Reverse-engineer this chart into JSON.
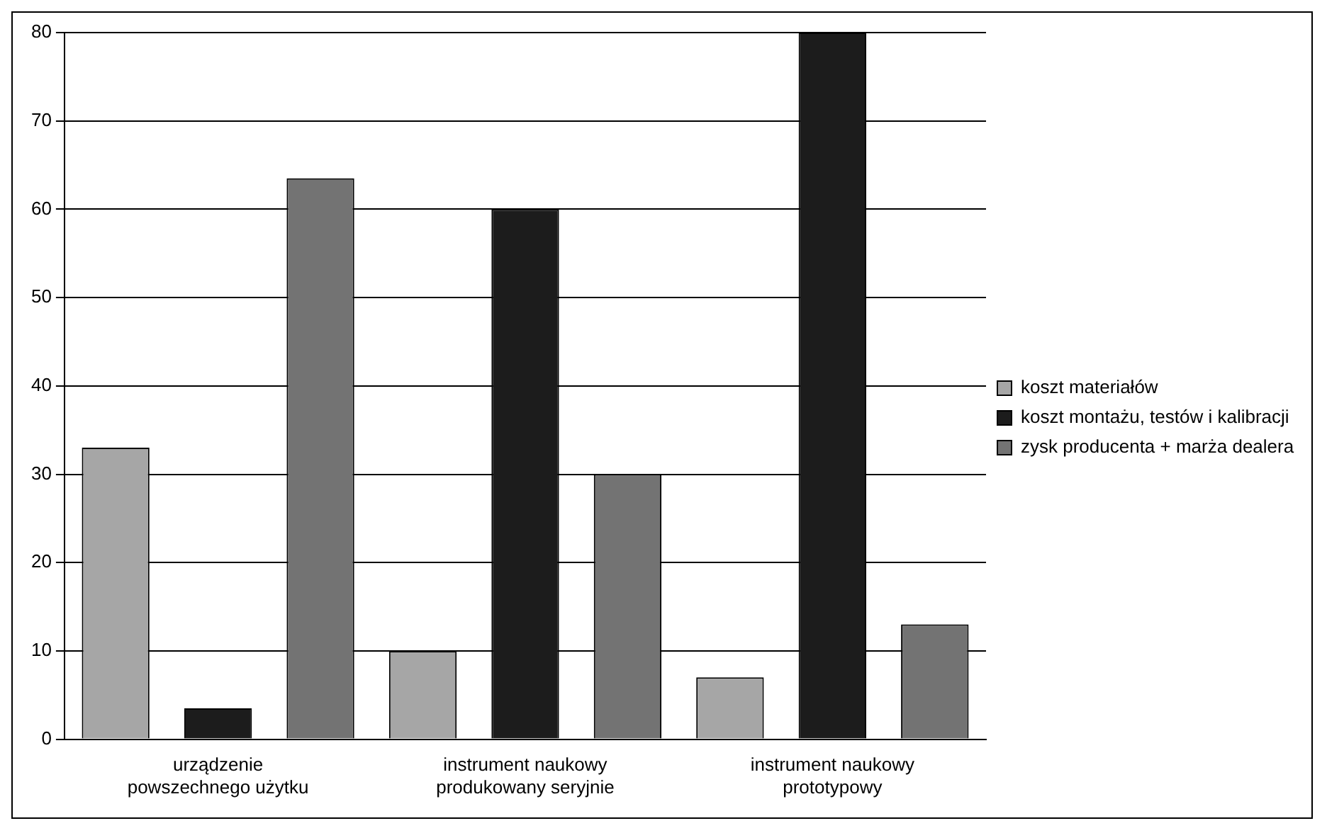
{
  "chart_data": {
    "type": "bar",
    "categories": [
      "urządzenie\npowszechnego użytku",
      "instrument naukowy\nprodukowany seryjnie",
      "instrument naukowy\nprototypowy"
    ],
    "series": [
      {
        "name": "koszt materiałów",
        "color": "#a6a6a6",
        "values": [
          33,
          10,
          7
        ]
      },
      {
        "name": "koszt montażu, testów i kalibracji",
        "color": "#1c1c1c",
        "values": [
          3.5,
          60,
          80
        ]
      },
      {
        "name": "zysk producenta + marża dealera",
        "color": "#737373",
        "values": [
          63.5,
          30,
          13
        ]
      }
    ],
    "ylim": [
      0,
      80
    ],
    "yticks": [
      0,
      10,
      20,
      30,
      40,
      50,
      60,
      70,
      80
    ],
    "grid": "y",
    "legend": "right"
  }
}
